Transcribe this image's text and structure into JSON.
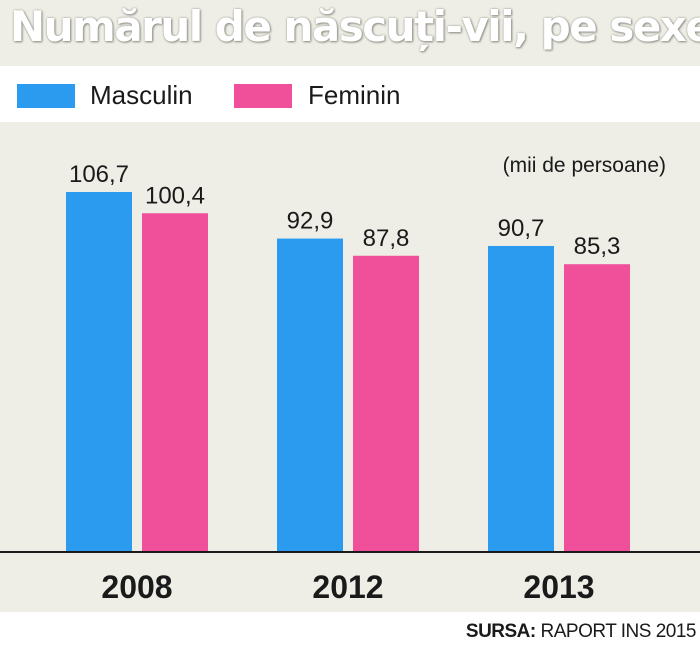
{
  "title": "Numărul de născuți-vii, pe sexe",
  "colors": {
    "masculin": "#2b9bf0",
    "feminin": "#f04f9a",
    "background": "#eeeee6"
  },
  "source": {
    "label": "SURSA:",
    "text": "RAPORT INS 2015"
  },
  "chart_data": {
    "type": "bar",
    "categories": [
      "2008",
      "2012",
      "2013"
    ],
    "series": [
      {
        "name": "Masculin",
        "values": [
          106.7,
          92.9,
          90.7
        ],
        "labels": [
          "106,7",
          "92,9",
          "90,7"
        ]
      },
      {
        "name": "Feminin",
        "values": [
          100.4,
          87.8,
          85.3
        ],
        "labels": [
          "100,4",
          "87,8",
          "85,3"
        ]
      }
    ],
    "unit_note": "(mii de persoane)",
    "ylim": [
      0,
      106.7
    ],
    "grid": false,
    "legend_position": "top-left"
  }
}
